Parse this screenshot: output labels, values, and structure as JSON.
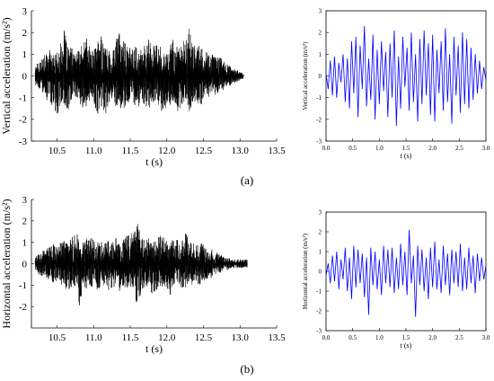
{
  "figure": {
    "label_a": "(a)",
    "label_b": "(b)"
  },
  "chart_data": [
    {
      "id": "a-left",
      "type": "line",
      "title": "",
      "xlabel": "t (s)",
      "ylabel": "Vertical acceleration (m/s²)",
      "xlim": [
        10.15,
        13.5
      ],
      "ylim": [
        -3,
        3
      ],
      "xticks": [
        10.5,
        11.0,
        11.5,
        12.0,
        12.5,
        13.0,
        13.5
      ],
      "xtick_labels": [
        "10.5",
        "11.0",
        "11.5",
        "12.0",
        "12.5",
        "13.0",
        "13.5"
      ],
      "yticks": [
        -3,
        -2,
        -1,
        0,
        1,
        2,
        3
      ],
      "ytick_labels": [
        "-3",
        "-2",
        "-1",
        "0",
        "1",
        "2",
        "3"
      ],
      "grid": false,
      "series": [
        {
          "color": "#000000",
          "x": [
            10.2,
            10.25,
            10.3,
            10.35,
            10.4,
            10.45,
            10.5,
            10.55,
            10.6,
            10.65,
            10.7,
            10.75,
            10.8,
            10.85,
            10.9,
            10.95,
            11.0,
            11.05,
            11.1,
            11.15,
            11.2,
            11.25,
            11.3,
            11.35,
            11.4,
            11.45,
            11.5,
            11.55,
            11.6,
            11.65,
            11.7,
            11.75,
            11.8,
            11.85,
            11.9,
            11.95,
            12.0,
            12.05,
            12.1,
            12.15,
            12.2,
            12.25,
            12.3,
            12.35,
            12.4,
            12.45,
            12.5,
            12.55,
            12.6,
            12.65,
            12.7,
            12.75,
            12.8,
            12.85,
            12.9,
            12.95,
            13.0,
            13.05
          ],
          "upper": [
            0.5,
            0.7,
            0.9,
            1.0,
            1.2,
            1.0,
            1.1,
            1.5,
            2.1,
            1.4,
            1.3,
            1.0,
            1.2,
            1.5,
            1.8,
            1.3,
            1.2,
            1.5,
            2.0,
            1.4,
            1.3,
            1.2,
            1.6,
            2.1,
            1.7,
            1.5,
            1.3,
            1.4,
            1.4,
            1.2,
            1.5,
            1.8,
            1.3,
            1.5,
            1.4,
            1.1,
            1.0,
            1.6,
            1.8,
            1.2,
            1.5,
            1.7,
            2.2,
            1.5,
            1.4,
            1.4,
            1.2,
            1.1,
            1.0,
            1.0,
            0.9,
            0.8,
            0.6,
            0.5,
            0.4,
            0.3,
            0.2,
            0.1
          ],
          "lower": [
            -0.5,
            -0.7,
            -0.9,
            -1.1,
            -1.2,
            -1.5,
            -1.9,
            -1.4,
            -1.3,
            -1.6,
            -1.2,
            -1.0,
            -1.3,
            -1.5,
            -1.4,
            -1.2,
            -1.3,
            -1.8,
            -1.4,
            -2.0,
            -1.3,
            -1.2,
            -1.4,
            -1.3,
            -1.8,
            -1.3,
            -1.2,
            -1.3,
            -1.6,
            -1.2,
            -1.4,
            -1.6,
            -1.3,
            -1.2,
            -1.5,
            -1.9,
            -1.3,
            -1.4,
            -1.3,
            -1.7,
            -1.4,
            -1.2,
            -1.8,
            -1.3,
            -1.2,
            -1.5,
            -1.1,
            -1.0,
            -1.0,
            -0.9,
            -0.8,
            -0.7,
            -0.6,
            -0.5,
            -0.4,
            -0.3,
            -0.2,
            -0.1
          ]
        }
      ]
    },
    {
      "id": "a-right",
      "type": "line",
      "title": "",
      "xlabel": "t (s)",
      "ylabel": "Vertical acceleration (m/s²)",
      "xlim": [
        0,
        3
      ],
      "ylim": [
        -3,
        3
      ],
      "xticks": [
        0,
        0.5,
        1.0,
        1.5,
        2.0,
        2.5,
        3.0
      ],
      "xtick_labels": [
        "0.0",
        "0.5",
        "1.0",
        "1.5",
        "2.0",
        "2.5",
        "3.0"
      ],
      "yticks": [
        -3,
        -2,
        -1,
        0,
        1,
        2,
        3
      ],
      "ytick_labels": [
        "-3",
        "-2",
        "-1",
        "0",
        "1",
        "2",
        "3"
      ],
      "grid": false,
      "series": [
        {
          "color": "#0000ff",
          "x": [
            0.0,
            0.04,
            0.08,
            0.12,
            0.16,
            0.2,
            0.24,
            0.28,
            0.32,
            0.36,
            0.4,
            0.44,
            0.48,
            0.52,
            0.56,
            0.6,
            0.64,
            0.68,
            0.72,
            0.76,
            0.8,
            0.84,
            0.88,
            0.92,
            0.96,
            1.0,
            1.04,
            1.08,
            1.12,
            1.16,
            1.2,
            1.24,
            1.28,
            1.32,
            1.36,
            1.4,
            1.44,
            1.48,
            1.52,
            1.56,
            1.6,
            1.64,
            1.68,
            1.72,
            1.76,
            1.8,
            1.84,
            1.88,
            1.92,
            1.96,
            2.0,
            2.04,
            2.08,
            2.12,
            2.16,
            2.2,
            2.24,
            2.28,
            2.32,
            2.36,
            2.4,
            2.44,
            2.48,
            2.52,
            2.56,
            2.6,
            2.64,
            2.68,
            2.72,
            2.76,
            2.8,
            2.84,
            2.88,
            2.92,
            2.96,
            3.0
          ],
          "y": [
            0.1,
            -0.6,
            0.7,
            -0.9,
            0.9,
            -1.0,
            0.6,
            -0.3,
            1.0,
            -1.2,
            0.8,
            -1.5,
            1.6,
            -0.8,
            1.8,
            -1.9,
            1.4,
            -0.6,
            2.3,
            -1.4,
            0.8,
            -1.1,
            1.9,
            -2.0,
            1.2,
            -1.3,
            1.6,
            -0.7,
            1.1,
            -1.9,
            1.5,
            -1.0,
            2.1,
            -2.3,
            0.9,
            -1.5,
            1.8,
            -0.5,
            1.3,
            -1.6,
            2.0,
            -1.2,
            1.0,
            -2.1,
            1.7,
            -1.3,
            2.1,
            -0.9,
            1.5,
            -1.8,
            1.9,
            -2.1,
            1.2,
            -0.8,
            1.6,
            -1.6,
            2.2,
            -1.2,
            1.0,
            -2.2,
            1.8,
            -0.9,
            1.4,
            -1.7,
            2.0,
            -1.3,
            1.7,
            -1.5,
            1.3,
            -1.1,
            1.0,
            -0.8,
            0.7,
            -0.6,
            0.4,
            -0.2
          ]
        }
      ]
    },
    {
      "id": "b-left",
      "type": "line",
      "title": "",
      "xlabel": "t (s)",
      "ylabel": "Horizontal acceleration (m/s²)",
      "xlim": [
        10.15,
        13.5
      ],
      "ylim": [
        -3,
        3
      ],
      "xticks": [
        10.5,
        11.0,
        11.5,
        12.0,
        12.5,
        13.0,
        13.5
      ],
      "xtick_labels": [
        "10.5",
        "11.0",
        "11.5",
        "12.0",
        "12.5",
        "13.0",
        "13.5"
      ],
      "yticks": [
        -2,
        -1,
        0,
        1,
        2,
        3
      ],
      "ytick_labels": [
        "-2",
        "-1",
        "0",
        "1",
        "2",
        "3"
      ],
      "grid": false,
      "series": [
        {
          "color": "#000000",
          "x": [
            10.2,
            10.25,
            10.3,
            10.35,
            10.4,
            10.45,
            10.5,
            10.55,
            10.6,
            10.65,
            10.7,
            10.75,
            10.8,
            10.85,
            10.9,
            10.95,
            11.0,
            11.05,
            11.1,
            11.15,
            11.2,
            11.25,
            11.3,
            11.35,
            11.4,
            11.45,
            11.5,
            11.55,
            11.6,
            11.65,
            11.7,
            11.75,
            11.8,
            11.85,
            11.9,
            11.95,
            12.0,
            12.05,
            12.1,
            12.15,
            12.2,
            12.25,
            12.3,
            12.35,
            12.4,
            12.45,
            12.5,
            12.55,
            12.6,
            12.65,
            12.7,
            12.75,
            12.8,
            12.85,
            12.9,
            12.95,
            13.0,
            13.05,
            13.1
          ],
          "upper": [
            0.3,
            0.5,
            0.6,
            0.7,
            0.8,
            0.9,
            0.8,
            1.0,
            1.1,
            1.0,
            1.2,
            1.8,
            1.1,
            1.0,
            1.2,
            1.4,
            1.1,
            1.0,
            1.3,
            1.2,
            1.1,
            1.0,
            1.2,
            1.4,
            1.2,
            1.3,
            1.4,
            1.5,
            2.0,
            1.3,
            1.1,
            1.2,
            1.0,
            1.1,
            1.4,
            1.3,
            1.1,
            1.0,
            1.2,
            1.1,
            1.0,
            1.5,
            1.1,
            1.0,
            0.9,
            1.0,
            0.9,
            0.8,
            0.8,
            0.7,
            0.5,
            0.4,
            0.3,
            0.3,
            0.2,
            0.2,
            0.2,
            0.2,
            0.2
          ],
          "lower": [
            -0.3,
            -0.5,
            -0.6,
            -0.7,
            -0.8,
            -0.9,
            -1.0,
            -1.0,
            -1.1,
            -1.3,
            -1.2,
            -1.1,
            -2.3,
            -1.1,
            -1.2,
            -1.1,
            -1.2,
            -1.5,
            -1.0,
            -1.1,
            -1.3,
            -1.2,
            -1.1,
            -1.3,
            -1.2,
            -1.1,
            -1.2,
            -1.1,
            -2.2,
            -1.3,
            -1.1,
            -1.2,
            -1.4,
            -1.3,
            -1.1,
            -1.2,
            -1.1,
            -1.5,
            -1.1,
            -1.0,
            -1.2,
            -1.1,
            -1.0,
            -1.0,
            -0.9,
            -1.0,
            -0.8,
            -0.7,
            -0.7,
            -0.6,
            -0.5,
            -0.4,
            -0.3,
            -0.3,
            -0.2,
            -0.2,
            -0.2,
            -0.2,
            -0.2
          ]
        }
      ]
    },
    {
      "id": "b-right",
      "type": "line",
      "title": "",
      "xlabel": "t (s)",
      "ylabel": "Horizontal acceleration (m/s²)",
      "xlim": [
        0,
        3
      ],
      "ylim": [
        -3,
        3
      ],
      "xticks": [
        0,
        0.5,
        1.0,
        1.5,
        2.0,
        2.5,
        3.0
      ],
      "xtick_labels": [
        "0.0",
        "0.5",
        "1.0",
        "1.5",
        "2.0",
        "2.5",
        "3.0"
      ],
      "yticks": [
        -3,
        -2,
        -1,
        0,
        1,
        2,
        3
      ],
      "ytick_labels": [
        "-3",
        "-2",
        "-1",
        "0",
        "1",
        "2",
        "3"
      ],
      "grid": false,
      "series": [
        {
          "color": "#0000ff",
          "x": [
            0.0,
            0.04,
            0.08,
            0.12,
            0.16,
            0.2,
            0.24,
            0.28,
            0.32,
            0.36,
            0.4,
            0.44,
            0.48,
            0.52,
            0.56,
            0.6,
            0.64,
            0.68,
            0.72,
            0.76,
            0.8,
            0.84,
            0.88,
            0.92,
            0.96,
            1.0,
            1.04,
            1.08,
            1.12,
            1.16,
            1.2,
            1.24,
            1.28,
            1.32,
            1.36,
            1.4,
            1.44,
            1.48,
            1.52,
            1.56,
            1.6,
            1.64,
            1.68,
            1.72,
            1.76,
            1.8,
            1.84,
            1.88,
            1.92,
            1.96,
            2.0,
            2.04,
            2.08,
            2.12,
            2.16,
            2.2,
            2.24,
            2.28,
            2.32,
            2.36,
            2.4,
            2.44,
            2.48,
            2.52,
            2.56,
            2.6,
            2.64,
            2.68,
            2.72,
            2.76,
            2.8,
            2.84,
            2.88,
            2.92,
            2.96,
            3.0
          ],
          "y": [
            -0.2,
            0.4,
            -0.6,
            0.8,
            -0.5,
            1.0,
            -0.9,
            0.6,
            -0.4,
            1.2,
            -1.0,
            0.7,
            -1.4,
            1.3,
            -0.8,
            1.1,
            -0.6,
            0.9,
            -1.3,
            0.7,
            -2.2,
            1.2,
            -0.7,
            1.0,
            -0.9,
            0.6,
            -1.2,
            1.3,
            -0.6,
            1.1,
            -0.8,
            1.2,
            -1.1,
            0.7,
            -0.9,
            1.4,
            -0.7,
            1.0,
            -1.2,
            2.1,
            -0.6,
            0.8,
            -2.3,
            1.3,
            -0.7,
            1.1,
            -1.0,
            0.7,
            -1.4,
            1.2,
            -0.8,
            1.5,
            -0.9,
            0.6,
            -1.1,
            1.3,
            -0.7,
            0.9,
            -1.2,
            1.1,
            -0.6,
            1.0,
            -0.8,
            1.4,
            -1.0,
            0.7,
            -0.9,
            1.2,
            -0.6,
            0.8,
            -1.1,
            0.9,
            -0.5,
            0.7,
            -0.4,
            0.3
          ]
        }
      ]
    }
  ]
}
